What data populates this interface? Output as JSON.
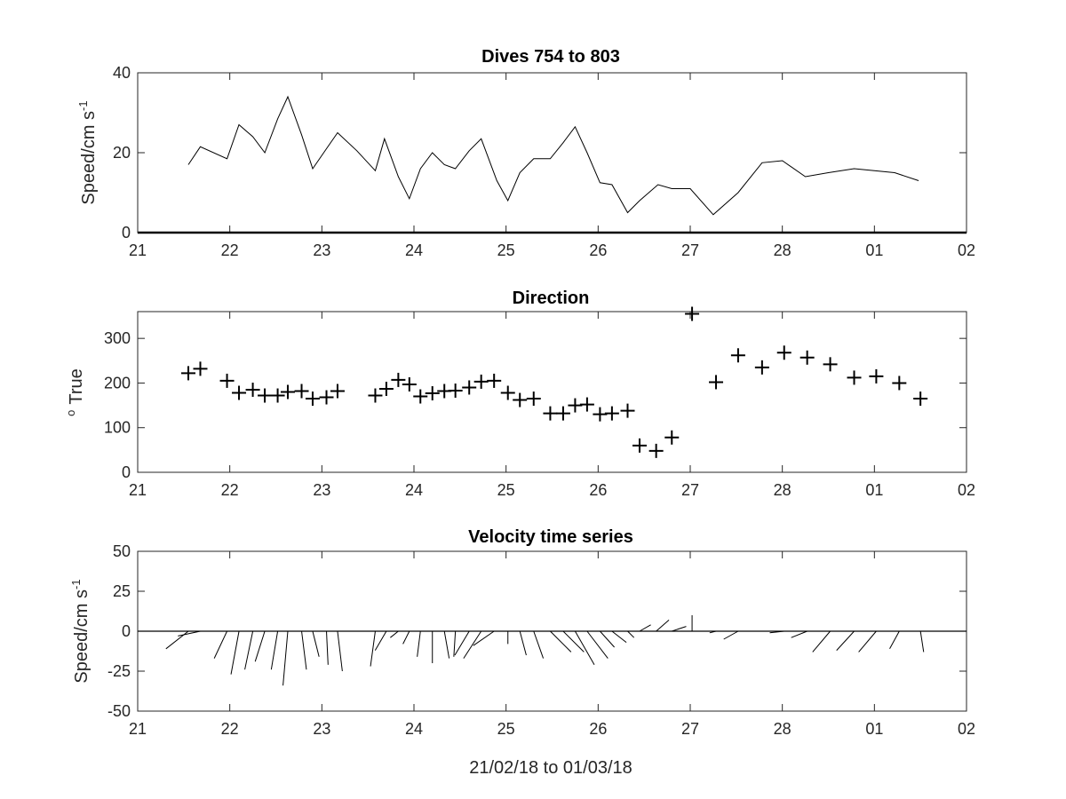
{
  "figure": {
    "xlabel": "21/02/18 to 01/03/18"
  },
  "chart_data": [
    {
      "type": "line",
      "title": "Dives 754 to 803",
      "ylabel": "Speed/cm s",
      "ylabel_superscript": "-1",
      "xlim": [
        21,
        30
      ],
      "ylim": [
        0,
        40
      ],
      "x_ticks": [
        "21",
        "22",
        "23",
        "24",
        "25",
        "26",
        "27",
        "28",
        "01",
        "02"
      ],
      "y_ticks": [
        "0",
        "20",
        "40"
      ],
      "y_tick_values": [
        0,
        20,
        40
      ],
      "series": [
        {
          "x": [
            21.55,
            21.68,
            21.97,
            22.1,
            22.25,
            22.38,
            22.52,
            22.63,
            22.78,
            22.9,
            23.05,
            23.17,
            23.38,
            23.58,
            23.68,
            23.83,
            23.95,
            24.07,
            24.2,
            24.33,
            24.45,
            24.6,
            24.73,
            24.9,
            25.02,
            25.15,
            25.3,
            25.48,
            25.62,
            25.75,
            25.88,
            26.02,
            26.15,
            26.32,
            26.45,
            26.65,
            26.8,
            27.0,
            27.25,
            27.52,
            27.78,
            28.0,
            28.25,
            28.5,
            28.78,
            29.0,
            29.22,
            29.48
          ],
          "y": [
            17,
            21.5,
            18.5,
            27,
            24,
            20,
            28.5,
            34,
            24.5,
            16,
            21,
            25,
            20.5,
            15.5,
            23.5,
            14,
            8.5,
            16,
            20,
            17,
            16,
            20.5,
            23.5,
            13,
            8,
            15,
            18.5,
            18.5,
            22.5,
            26.5,
            20,
            12.5,
            12,
            5,
            8,
            12,
            11,
            11,
            4.5,
            10,
            17.5,
            18,
            14,
            15,
            16,
            15.5,
            15,
            13
          ]
        }
      ]
    },
    {
      "type": "scatter",
      "title": "Direction",
      "ylabel": "True",
      "ylabel_prefix": "o",
      "xlim": [
        21,
        30
      ],
      "ylim": [
        0,
        360
      ],
      "x_ticks": [
        "21",
        "22",
        "23",
        "24",
        "25",
        "26",
        "27",
        "28",
        "01",
        "02"
      ],
      "y_ticks": [
        "0",
        "100",
        "200",
        "300"
      ],
      "y_tick_values": [
        0,
        100,
        200,
        300
      ],
      "series": [
        {
          "marker": "+",
          "x": [
            21.55,
            21.68,
            21.97,
            22.1,
            22.25,
            22.38,
            22.52,
            22.63,
            22.78,
            22.9,
            23.05,
            23.17,
            23.58,
            23.7,
            23.83,
            23.95,
            24.07,
            24.2,
            24.33,
            24.45,
            24.6,
            24.73,
            24.87,
            25.02,
            25.15,
            25.3,
            25.48,
            25.62,
            25.75,
            25.88,
            26.02,
            26.15,
            26.32,
            26.45,
            26.63,
            26.8,
            27.02,
            27.28,
            27.52,
            27.78,
            28.02,
            28.27,
            28.52,
            28.78,
            29.02,
            29.27,
            29.5
          ],
          "y": [
            222,
            232,
            205,
            178,
            185,
            172,
            172,
            180,
            182,
            165,
            168,
            182,
            172,
            187,
            207,
            197,
            170,
            177,
            182,
            183,
            190,
            203,
            205,
            178,
            162,
            165,
            132,
            132,
            150,
            152,
            130,
            132,
            138,
            60,
            48,
            78,
            355,
            202,
            262,
            235,
            268,
            257,
            242,
            212,
            215,
            200,
            165
          ]
        }
      ]
    },
    {
      "type": "quiver",
      "title": "Velocity time series",
      "ylabel": "Speed/cm s",
      "ylabel_superscript": "-1",
      "xlim": [
        21,
        30
      ],
      "ylim": [
        -50,
        50
      ],
      "x_ticks": [
        "21",
        "22",
        "23",
        "24",
        "25",
        "26",
        "27",
        "28",
        "01",
        "02"
      ],
      "y_ticks": [
        "-50",
        "-25",
        "0",
        "25",
        "50"
      ],
      "y_tick_values": [
        -50,
        -25,
        0,
        25,
        50
      ],
      "vectors": [
        {
          "x": 21.55,
          "u": -14,
          "v": -11
        },
        {
          "x": 21.68,
          "u": -14,
          "v": -3
        },
        {
          "x": 21.97,
          "u": -8,
          "v": -17
        },
        {
          "x": 22.1,
          "u": -5,
          "v": -27
        },
        {
          "x": 22.25,
          "u": -5,
          "v": -24
        },
        {
          "x": 22.38,
          "u": -6,
          "v": -19
        },
        {
          "x": 22.52,
          "u": -4,
          "v": -24
        },
        {
          "x": 22.63,
          "u": -3,
          "v": -34
        },
        {
          "x": 22.78,
          "u": 3,
          "v": -24
        },
        {
          "x": 22.9,
          "u": 4,
          "v": -16
        },
        {
          "x": 23.05,
          "u": 1,
          "v": -21
        },
        {
          "x": 23.17,
          "u": 3,
          "v": -25
        },
        {
          "x": 23.58,
          "u": -3,
          "v": -22
        },
        {
          "x": 23.7,
          "u": -7,
          "v": -12
        },
        {
          "x": 23.83,
          "u": -5,
          "v": -4
        },
        {
          "x": 23.95,
          "u": -4,
          "v": -8
        },
        {
          "x": 24.07,
          "u": -2,
          "v": -16
        },
        {
          "x": 24.2,
          "u": 0,
          "v": -20
        },
        {
          "x": 24.33,
          "u": 3,
          "v": -17
        },
        {
          "x": 24.45,
          "u": -1,
          "v": -16
        },
        {
          "x": 24.6,
          "u": -9,
          "v": -15
        },
        {
          "x": 24.73,
          "u": -11,
          "v": -17
        },
        {
          "x": 24.87,
          "u": -13,
          "v": -9
        },
        {
          "x": 25.02,
          "u": 0,
          "v": -8
        },
        {
          "x": 25.15,
          "u": 4,
          "v": -15
        },
        {
          "x": 25.3,
          "u": 6,
          "v": -17
        },
        {
          "x": 25.48,
          "u": 13,
          "v": -13
        },
        {
          "x": 25.62,
          "u": 13,
          "v": -13
        },
        {
          "x": 25.75,
          "u": 12,
          "v": -21
        },
        {
          "x": 25.88,
          "u": 13,
          "v": -17
        },
        {
          "x": 26.02,
          "u": 9,
          "v": -10
        },
        {
          "x": 26.15,
          "u": 9,
          "v": -7
        },
        {
          "x": 26.32,
          "u": 4,
          "v": -4
        },
        {
          "x": 26.45,
          "u": 7,
          "v": 4
        },
        {
          "x": 26.63,
          "u": 8,
          "v": 7
        },
        {
          "x": 26.8,
          "u": 9,
          "v": 3
        },
        {
          "x": 27.02,
          "u": 0,
          "v": 10
        },
        {
          "x": 27.28,
          "u": -4,
          "v": -1
        },
        {
          "x": 27.52,
          "u": -9,
          "v": -5
        },
        {
          "x": 27.78,
          "u": -8,
          "v": 0
        },
        {
          "x": 28.02,
          "u": -9,
          "v": -1
        },
        {
          "x": 28.27,
          "u": -10,
          "v": -4
        },
        {
          "x": 28.52,
          "u": -11,
          "v": -13
        },
        {
          "x": 28.78,
          "u": -11,
          "v": -12
        },
        {
          "x": 29.02,
          "u": -11,
          "v": -13
        },
        {
          "x": 29.27,
          "u": -6,
          "v": -11
        },
        {
          "x": 29.5,
          "u": 2,
          "v": -13
        }
      ]
    }
  ]
}
